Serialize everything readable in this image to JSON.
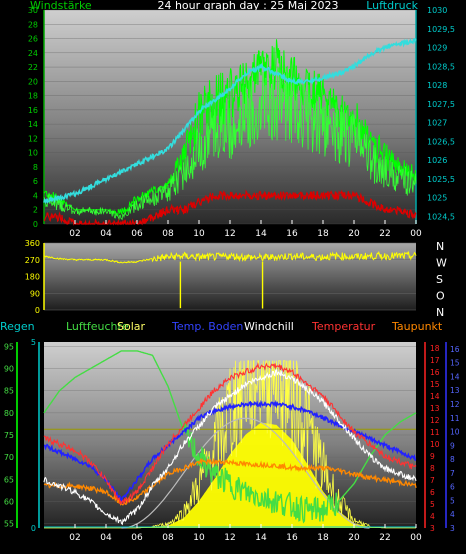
{
  "header": {
    "left_label": "Windstärke",
    "title": "24 hour graph day : 25 Maj 2023",
    "right_label": "Luftdruck"
  },
  "colors": {
    "wind": "#00ff00",
    "gust": "#00dd00",
    "pressure": "#33dddd",
    "direction": "#ffff00",
    "temperature": "#ff3333",
    "windchill": "#ffffff",
    "dewpoint": "#ff8800",
    "humidity": "#44dd44",
    "solar": "#ffff00",
    "ground_temp": "#2222ff",
    "axis_red": "#ff2222",
    "axis_blue": "#3333ff",
    "wind_axis": "#00cc00",
    "pressure_axis": "#00cccc"
  },
  "x_ticks": [
    "02",
    "04",
    "06",
    "08",
    "10",
    "12",
    "14",
    "16",
    "18",
    "20",
    "22",
    "00"
  ],
  "chart_data": [
    {
      "type": "line",
      "name_left": "Windstärke",
      "name_right": "Luftdruck",
      "title": "24 hour graph day : 25 Maj 2023",
      "x_hours": [
        0,
        1,
        2,
        3,
        4,
        5,
        6,
        7,
        8,
        9,
        10,
        11,
        12,
        13,
        14,
        15,
        16,
        17,
        18,
        19,
        20,
        21,
        22,
        23,
        24
      ],
      "left_axis": {
        "ticks": [
          "0",
          "2",
          "4",
          "6",
          "8",
          "10",
          "12",
          "14",
          "16",
          "18",
          "20",
          "22",
          "24",
          "26",
          "28",
          "30"
        ],
        "ylim": [
          0,
          30
        ]
      },
      "right_axis": {
        "ticks": [
          "1024,5",
          "1025",
          "1025,5",
          "1026",
          "1026,5",
          "1027",
          "1027,5",
          "1028",
          "1028,5",
          "1029",
          "1029,5",
          "1030"
        ],
        "ylim": [
          1024.3,
          1030
        ]
      },
      "series": [
        {
          "name": "wind",
          "values": [
            4,
            3,
            2,
            2,
            2,
            1,
            3,
            4,
            5,
            8,
            12,
            14,
            15,
            17,
            19,
            19,
            18,
            17,
            16,
            14,
            13,
            10,
            8,
            7,
            6
          ]
        },
        {
          "name": "gust",
          "values": [
            5,
            4,
            2,
            2,
            2,
            2,
            4,
            5,
            6,
            11,
            18,
            20,
            21,
            22,
            24,
            25,
            23,
            22,
            20,
            18,
            17,
            14,
            11,
            9,
            8
          ]
        },
        {
          "name": "wind_avg",
          "values": [
            1,
            1,
            0,
            0,
            0,
            0,
            0,
            1,
            2,
            2,
            3,
            4,
            4,
            4,
            4,
            4,
            4,
            4,
            4,
            4,
            4,
            3,
            2,
            2,
            1
          ]
        },
        {
          "name": "pressure",
          "values": [
            1024.9,
            1025.0,
            1025.1,
            1025.3,
            1025.5,
            1025.7,
            1025.9,
            1026.1,
            1026.3,
            1026.8,
            1027.3,
            1027.6,
            1027.9,
            1028.3,
            1028.5,
            1028.3,
            1028.1,
            1028.1,
            1028.2,
            1028.3,
            1028.5,
            1028.8,
            1029.0,
            1029.1,
            1029.2
          ]
        }
      ]
    },
    {
      "type": "line",
      "name": "wind direction",
      "x_hours": [
        0,
        1,
        2,
        3,
        4,
        5,
        6,
        7,
        8,
        9,
        10,
        11,
        12,
        13,
        14,
        15,
        16,
        17,
        18,
        19,
        20,
        21,
        22,
        23,
        24
      ],
      "left_axis": {
        "ticks": [
          "0",
          "90",
          "180",
          "270",
          "360"
        ],
        "ylim": [
          0,
          360
        ]
      },
      "right_labels": [
        "N",
        "W",
        "S",
        "O",
        "N"
      ],
      "series": [
        {
          "name": "direction",
          "values": [
            290,
            275,
            270,
            270,
            270,
            255,
            260,
            275,
            285,
            290,
            285,
            285,
            290,
            285,
            280,
            285,
            290,
            285,
            285,
            290,
            285,
            290,
            290,
            290,
            290
          ]
        }
      ]
    },
    {
      "type": "line",
      "legend": [
        "Regen",
        "Luftfeuchte",
        "Solar",
        "Temp. Boden",
        "Windchill",
        "Temperatur",
        "Taupunkt"
      ],
      "x_hours": [
        0,
        1,
        2,
        3,
        4,
        5,
        6,
        7,
        8,
        9,
        10,
        11,
        12,
        13,
        14,
        15,
        16,
        17,
        18,
        19,
        20,
        21,
        22,
        23,
        24
      ],
      "humidity_axis": {
        "ticks": [
          "55",
          "60",
          "65",
          "70",
          "75",
          "80",
          "85",
          "90",
          "95"
        ],
        "ylim": [
          54,
          96
        ]
      },
      "rain_axis": {
        "ticks": [
          "0",
          "5"
        ],
        "ylim": [
          0,
          5
        ]
      },
      "temp_axis": {
        "ticks": [
          "3",
          "4",
          "5",
          "6",
          "7",
          "8",
          "9",
          "10",
          "11",
          "12",
          "13",
          "14",
          "15",
          "16",
          "17",
          "18"
        ],
        "ylim": [
          3,
          18.5
        ]
      },
      "ground_axis": {
        "ticks": [
          "3",
          "4",
          "5",
          "6",
          "7",
          "8",
          "9",
          "10",
          "11",
          "12",
          "13",
          "14",
          "15",
          "16"
        ],
        "ylim": [
          3,
          16.5
        ]
      },
      "series": [
        {
          "name": "Luftfeuchte",
          "values": [
            80,
            85,
            88,
            90,
            92,
            94,
            94,
            93,
            86,
            76,
            70,
            66,
            64,
            62,
            61,
            60,
            59,
            58,
            58,
            60,
            64,
            70,
            75,
            78,
            80
          ]
        },
        {
          "name": "Solar",
          "values": [
            0,
            0,
            0,
            0,
            0,
            0,
            0,
            5,
            10,
            40,
            110,
            200,
            300,
            380,
            430,
            420,
            360,
            260,
            150,
            70,
            20,
            5,
            0,
            0,
            0
          ]
        },
        {
          "name": "Temp. Boden",
          "values": [
            9,
            8.5,
            8,
            7.5,
            6.5,
            5,
            6.5,
            8,
            9,
            10,
            11,
            11.5,
            11.8,
            12,
            12,
            12,
            11.8,
            11.5,
            11,
            10.5,
            10,
            9.5,
            9,
            8.5,
            8
          ]
        },
        {
          "name": "Windchill",
          "values": [
            7,
            6.5,
            6,
            5.2,
            4.2,
            3.5,
            4.5,
            6.5,
            8,
            10,
            11.5,
            13,
            14,
            15,
            15.5,
            16,
            15.5,
            14.5,
            13.5,
            12,
            10.5,
            9,
            8,
            7.5,
            7
          ]
        },
        {
          "name": "Temperatur",
          "values": [
            10.5,
            10,
            9.5,
            8.5,
            7,
            5,
            6,
            8,
            10,
            11.5,
            13,
            14.5,
            15.5,
            16,
            16.5,
            16.5,
            16,
            15,
            14,
            12.5,
            11,
            10,
            9,
            8.5,
            8
          ]
        },
        {
          "name": "Taupunkt",
          "values": [
            6.5,
            6.5,
            6.5,
            6.3,
            6,
            5,
            5.5,
            6.5,
            7.5,
            8,
            8.5,
            8.5,
            8.5,
            8.3,
            8.3,
            8.2,
            8,
            8,
            8,
            7.8,
            7.5,
            7.2,
            7,
            6.8,
            6.5
          ]
        }
      ]
    }
  ]
}
